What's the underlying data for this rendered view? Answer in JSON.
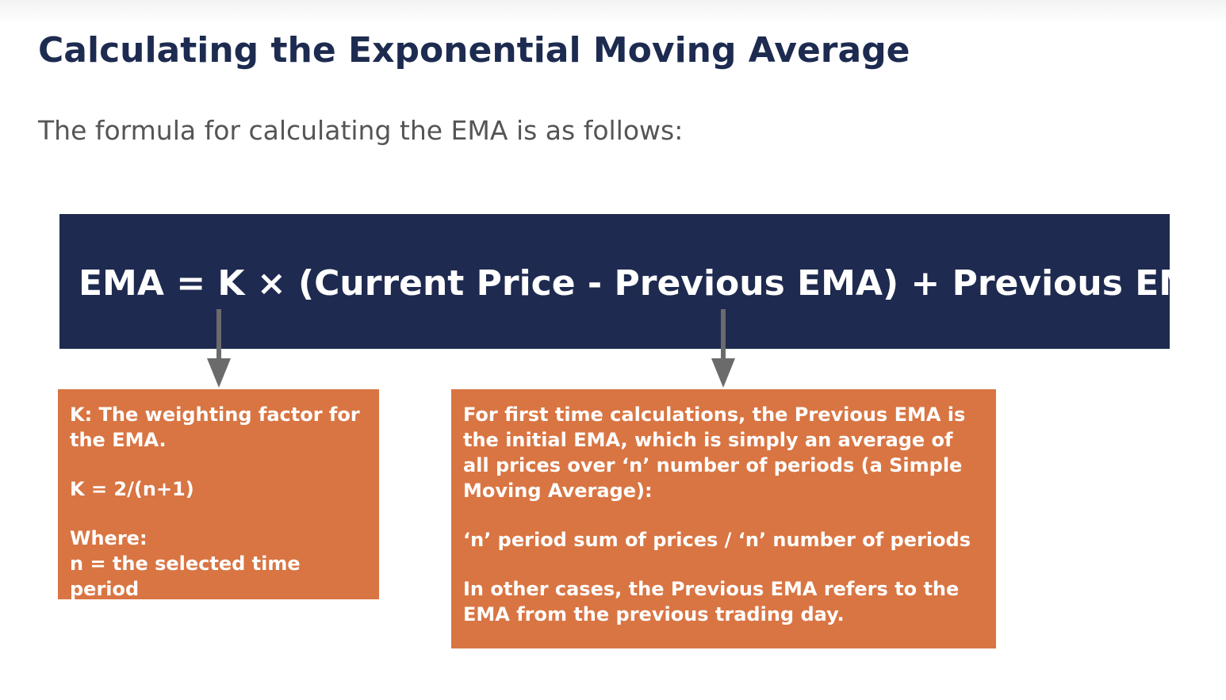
{
  "heading": "Calculating the Exponential Moving Average",
  "intro": "The formula for calculating the EMA is as follows:",
  "formula": "EMA = K × (Current Price - Previous EMA) + Previous EMA",
  "k_box": {
    "line1": "K: The weighting factor for the EMA.",
    "line2": "K = 2/(n+1)",
    "line3": "Where:",
    "line4": "n =  the selected time period"
  },
  "previous_ema_box": {
    "para1": "For first time calculations, the Previous EMA is the initial EMA, which is simply an average of all prices over ‘n’ number of periods (a Simple Moving Average):",
    "para2": "‘n’ period sum of prices / ‘n’ number of periods",
    "para3": "In other cases, the Previous EMA refers to the EMA from the previous trading day."
  },
  "colors": {
    "heading": "#1d2b50",
    "banner": "#1e2a4f",
    "box": "#d97543",
    "arrow": "#6b6b6b"
  }
}
